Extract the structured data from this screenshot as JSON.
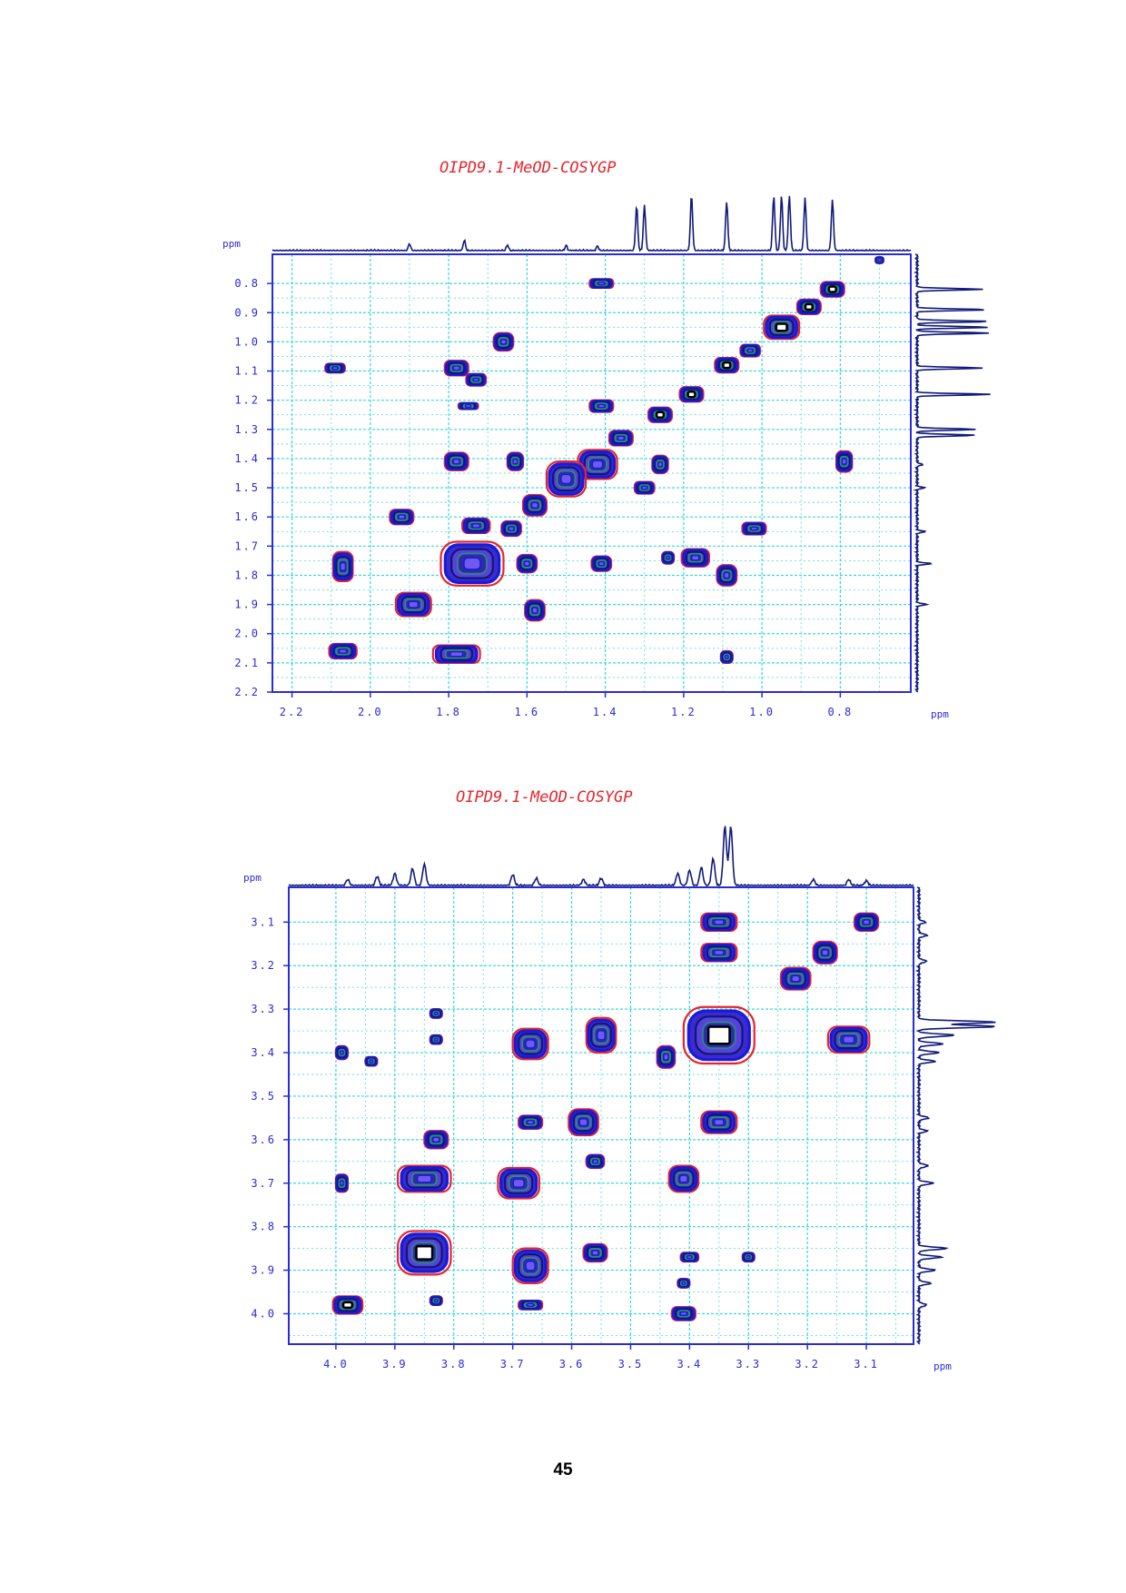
{
  "page_number": "45",
  "colors": {
    "axis": "#2b2bd6",
    "grid": "#38d7e0",
    "projection": "#101a7a",
    "title": "#e8232a",
    "contour_outer": "#e8232a",
    "contour_mid": "#1a1ad8",
    "contour_inner": "#0b1b6e",
    "contour_core": "#2e8a78"
  },
  "chart_data": [
    {
      "type": "heatmap",
      "title": "OIPD9.1-MeOD-COSYGP",
      "x_axis": {
        "label": "ppm",
        "range": [
          2.25,
          0.62
        ],
        "reversed": true,
        "ticks": [
          "2.2",
          "2.0",
          "1.8",
          "1.6",
          "1.4",
          "1.2",
          "1.0",
          "0.8"
        ],
        "tick_values": [
          2.2,
          2.0,
          1.8,
          1.6,
          1.4,
          1.2,
          1.0,
          0.8
        ]
      },
      "y_axis": {
        "label": "ppm",
        "range": [
          0.7,
          2.2
        ],
        "ticks": [
          "0.8",
          "0.9",
          "1.0",
          "1.1",
          "1.2",
          "1.3",
          "1.4",
          "1.5",
          "1.6",
          "1.7",
          "1.8",
          "1.9",
          "2.0",
          "2.1",
          "2.2"
        ],
        "tick_values": [
          0.8,
          0.9,
          1.0,
          1.1,
          1.2,
          1.3,
          1.4,
          1.5,
          1.6,
          1.7,
          1.8,
          1.9,
          2.0,
          2.1,
          2.2
        ]
      },
      "grid": true,
      "projection_peaks": [
        {
          "ppm": 1.32,
          "height": 0.75
        },
        {
          "ppm": 1.3,
          "height": 0.75
        },
        {
          "ppm": 1.18,
          "height": 0.93
        },
        {
          "ppm": 1.09,
          "height": 0.83
        },
        {
          "ppm": 0.97,
          "height": 0.92
        },
        {
          "ppm": 0.95,
          "height": 0.92
        },
        {
          "ppm": 0.93,
          "height": 0.92
        },
        {
          "ppm": 0.89,
          "height": 0.88
        },
        {
          "ppm": 0.82,
          "height": 0.85
        },
        {
          "ppm": 1.9,
          "height": 0.12
        },
        {
          "ppm": 1.76,
          "height": 0.18
        },
        {
          "ppm": 1.65,
          "height": 0.1
        },
        {
          "ppm": 1.5,
          "height": 0.09
        },
        {
          "ppm": 1.42,
          "height": 0.08
        }
      ],
      "cross_peaks": [
        {
          "x": 0.82,
          "y": 0.82,
          "w": 0.06,
          "h": 0.05,
          "core": true
        },
        {
          "x": 0.88,
          "y": 0.88,
          "w": 0.06,
          "h": 0.05,
          "core": true
        },
        {
          "x": 0.95,
          "y": 0.95,
          "w": 0.09,
          "h": 0.08,
          "core": true
        },
        {
          "x": 1.09,
          "y": 1.08,
          "w": 0.06,
          "h": 0.05,
          "core": true
        },
        {
          "x": 1.18,
          "y": 1.18,
          "w": 0.06,
          "h": 0.05,
          "core": true
        },
        {
          "x": 1.26,
          "y": 1.25,
          "w": 0.06,
          "h": 0.05,
          "core": true
        },
        {
          "x": 1.03,
          "y": 1.03,
          "w": 0.05,
          "h": 0.04,
          "core": false
        },
        {
          "x": 1.36,
          "y": 1.33,
          "w": 0.06,
          "h": 0.05,
          "core": false
        },
        {
          "x": 1.42,
          "y": 1.42,
          "w": 0.1,
          "h": 0.1,
          "core": false
        },
        {
          "x": 1.5,
          "y": 1.47,
          "w": 0.1,
          "h": 0.12,
          "core": false
        },
        {
          "x": 1.58,
          "y": 1.56,
          "w": 0.06,
          "h": 0.07,
          "core": false
        },
        {
          "x": 1.64,
          "y": 1.64,
          "w": 0.05,
          "h": 0.05,
          "core": false
        },
        {
          "x": 1.74,
          "y": 1.76,
          "w": 0.16,
          "h": 0.15,
          "core": false
        },
        {
          "x": 1.89,
          "y": 1.9,
          "w": 0.09,
          "h": 0.08,
          "core": false
        },
        {
          "x": 1.41,
          "y": 0.8,
          "w": 0.06,
          "h": 0.03,
          "core": false
        },
        {
          "x": 1.41,
          "y": 1.22,
          "w": 0.06,
          "h": 0.04,
          "core": false
        },
        {
          "x": 0.79,
          "y": 1.41,
          "w": 0.04,
          "h": 0.07,
          "core": false
        },
        {
          "x": 1.78,
          "y": 1.09,
          "w": 0.06,
          "h": 0.05,
          "core": false
        },
        {
          "x": 1.73,
          "y": 1.13,
          "w": 0.05,
          "h": 0.04,
          "core": false
        },
        {
          "x": 1.75,
          "y": 1.22,
          "w": 0.05,
          "h": 0.02,
          "core": false
        },
        {
          "x": 1.78,
          "y": 1.41,
          "w": 0.06,
          "h": 0.06,
          "core": false
        },
        {
          "x": 1.63,
          "y": 1.41,
          "w": 0.04,
          "h": 0.06,
          "core": false
        },
        {
          "x": 1.66,
          "y": 1.0,
          "w": 0.05,
          "h": 0.06,
          "core": false
        },
        {
          "x": 2.09,
          "y": 1.09,
          "w": 0.05,
          "h": 0.03,
          "core": false
        },
        {
          "x": 2.07,
          "y": 1.77,
          "w": 0.05,
          "h": 0.1,
          "core": false
        },
        {
          "x": 2.07,
          "y": 2.06,
          "w": 0.07,
          "h": 0.05,
          "core": false
        },
        {
          "x": 1.92,
          "y": 1.6,
          "w": 0.06,
          "h": 0.05,
          "core": false
        },
        {
          "x": 1.73,
          "y": 1.63,
          "w": 0.07,
          "h": 0.05,
          "core": false
        },
        {
          "x": 1.78,
          "y": 2.07,
          "w": 0.12,
          "h": 0.06,
          "core": false
        },
        {
          "x": 1.6,
          "y": 1.76,
          "w": 0.05,
          "h": 0.06,
          "core": false
        },
        {
          "x": 1.58,
          "y": 1.92,
          "w": 0.05,
          "h": 0.07,
          "core": false
        },
        {
          "x": 1.41,
          "y": 1.76,
          "w": 0.05,
          "h": 0.05,
          "core": false
        },
        {
          "x": 1.3,
          "y": 1.5,
          "w": 0.05,
          "h": 0.04,
          "core": false
        },
        {
          "x": 1.26,
          "y": 1.42,
          "w": 0.04,
          "h": 0.06,
          "core": false
        },
        {
          "x": 1.17,
          "y": 1.74,
          "w": 0.07,
          "h": 0.06,
          "core": false
        },
        {
          "x": 1.09,
          "y": 1.8,
          "w": 0.05,
          "h": 0.07,
          "core": false
        },
        {
          "x": 1.02,
          "y": 1.64,
          "w": 0.06,
          "h": 0.04,
          "core": false
        },
        {
          "x": 1.09,
          "y": 2.08,
          "w": 0.03,
          "h": 0.04,
          "core": false
        },
        {
          "x": 1.24,
          "y": 1.74,
          "w": 0.03,
          "h": 0.04,
          "core": false
        },
        {
          "x": 0.7,
          "y": 0.72,
          "w": 0.02,
          "h": 0.02,
          "core": false
        }
      ]
    },
    {
      "type": "heatmap",
      "title": "OIPD9.1-MeOD-COSYGP",
      "x_axis": {
        "label": "ppm",
        "range": [
          4.08,
          3.02
        ],
        "reversed": true,
        "ticks": [
          "4.0",
          "3.9",
          "3.8",
          "3.7",
          "3.6",
          "3.5",
          "3.4",
          "3.3",
          "3.2",
          "3.1"
        ],
        "tick_values": [
          4.0,
          3.9,
          3.8,
          3.7,
          3.6,
          3.5,
          3.4,
          3.3,
          3.2,
          3.1
        ]
      },
      "y_axis": {
        "label": "ppm",
        "range": [
          3.02,
          4.07
        ],
        "ticks": [
          "3.1",
          "3.2",
          "3.3",
          "3.4",
          "3.5",
          "3.6",
          "3.7",
          "3.8",
          "3.9",
          "4.0"
        ],
        "tick_values": [
          3.1,
          3.2,
          3.3,
          3.4,
          3.5,
          3.6,
          3.7,
          3.8,
          3.9,
          4.0
        ]
      },
      "grid": true,
      "projection_peaks": [
        {
          "ppm": 3.34,
          "height": 0.97
        },
        {
          "ppm": 3.33,
          "height": 0.97
        },
        {
          "ppm": 3.36,
          "height": 0.45
        },
        {
          "ppm": 3.38,
          "height": 0.3
        },
        {
          "ppm": 3.4,
          "height": 0.25
        },
        {
          "ppm": 3.42,
          "height": 0.2
        },
        {
          "ppm": 3.85,
          "height": 0.35
        },
        {
          "ppm": 3.87,
          "height": 0.28
        },
        {
          "ppm": 3.9,
          "height": 0.2
        },
        {
          "ppm": 3.93,
          "height": 0.15
        },
        {
          "ppm": 3.7,
          "height": 0.18
        },
        {
          "ppm": 3.66,
          "height": 0.12
        },
        {
          "ppm": 3.58,
          "height": 0.1
        },
        {
          "ppm": 3.55,
          "height": 0.12
        },
        {
          "ppm": 3.19,
          "height": 0.1
        },
        {
          "ppm": 3.13,
          "height": 0.1
        },
        {
          "ppm": 3.1,
          "height": 0.08
        },
        {
          "ppm": 3.98,
          "height": 0.1
        }
      ],
      "cross_peaks": [
        {
          "x": 3.1,
          "y": 3.1,
          "w": 0.04,
          "h": 0.04,
          "core": false
        },
        {
          "x": 3.17,
          "y": 3.17,
          "w": 0.04,
          "h": 0.05,
          "core": false
        },
        {
          "x": 3.22,
          "y": 3.23,
          "w": 0.05,
          "h": 0.05,
          "core": false
        },
        {
          "x": 3.35,
          "y": 3.36,
          "w": 0.12,
          "h": 0.13,
          "core": true
        },
        {
          "x": 3.44,
          "y": 3.41,
          "w": 0.03,
          "h": 0.05,
          "core": false
        },
        {
          "x": 3.58,
          "y": 3.56,
          "w": 0.05,
          "h": 0.06,
          "core": false
        },
        {
          "x": 3.69,
          "y": 3.7,
          "w": 0.07,
          "h": 0.07,
          "core": false
        },
        {
          "x": 3.85,
          "y": 3.86,
          "w": 0.09,
          "h": 0.1,
          "core": true
        },
        {
          "x": 3.98,
          "y": 3.98,
          "w": 0.05,
          "h": 0.04,
          "core": true
        },
        {
          "x": 3.35,
          "y": 3.1,
          "w": 0.06,
          "h": 0.04,
          "core": false
        },
        {
          "x": 3.35,
          "y": 3.17,
          "w": 0.06,
          "h": 0.04,
          "core": false
        },
        {
          "x": 3.13,
          "y": 3.37,
          "w": 0.07,
          "h": 0.06,
          "core": false
        },
        {
          "x": 3.55,
          "y": 3.36,
          "w": 0.05,
          "h": 0.08,
          "core": false
        },
        {
          "x": 3.67,
          "y": 3.38,
          "w": 0.06,
          "h": 0.07,
          "core": false
        },
        {
          "x": 3.99,
          "y": 3.4,
          "w": 0.02,
          "h": 0.03,
          "core": false
        },
        {
          "x": 3.35,
          "y": 3.56,
          "w": 0.06,
          "h": 0.05,
          "core": false
        },
        {
          "x": 3.83,
          "y": 3.6,
          "w": 0.04,
          "h": 0.04,
          "core": false
        },
        {
          "x": 3.85,
          "y": 3.69,
          "w": 0.09,
          "h": 0.06,
          "core": false
        },
        {
          "x": 3.99,
          "y": 3.7,
          "w": 0.02,
          "h": 0.04,
          "core": false
        },
        {
          "x": 3.41,
          "y": 3.69,
          "w": 0.05,
          "h": 0.06,
          "core": false
        },
        {
          "x": 3.67,
          "y": 3.89,
          "w": 0.06,
          "h": 0.08,
          "core": false
        },
        {
          "x": 3.56,
          "y": 3.86,
          "w": 0.04,
          "h": 0.04,
          "core": false
        },
        {
          "x": 3.67,
          "y": 3.98,
          "w": 0.04,
          "h": 0.02,
          "core": false
        },
        {
          "x": 3.41,
          "y": 4.0,
          "w": 0.04,
          "h": 0.03,
          "core": false
        },
        {
          "x": 3.4,
          "y": 3.87,
          "w": 0.03,
          "h": 0.02,
          "core": false
        },
        {
          "x": 3.41,
          "y": 3.93,
          "w": 0.02,
          "h": 0.02,
          "core": false
        },
        {
          "x": 3.3,
          "y": 3.87,
          "w": 0.02,
          "h": 0.02,
          "core": false
        },
        {
          "x": 3.83,
          "y": 3.31,
          "w": 0.02,
          "h": 0.02,
          "core": false
        },
        {
          "x": 3.83,
          "y": 3.37,
          "w": 0.02,
          "h": 0.02,
          "core": false
        },
        {
          "x": 3.94,
          "y": 3.42,
          "w": 0.02,
          "h": 0.02,
          "core": false
        },
        {
          "x": 3.67,
          "y": 3.56,
          "w": 0.04,
          "h": 0.03,
          "core": false
        },
        {
          "x": 3.56,
          "y": 3.65,
          "w": 0.03,
          "h": 0.03,
          "core": false
        },
        {
          "x": 3.83,
          "y": 3.97,
          "w": 0.02,
          "h": 0.02,
          "core": false
        }
      ]
    }
  ]
}
